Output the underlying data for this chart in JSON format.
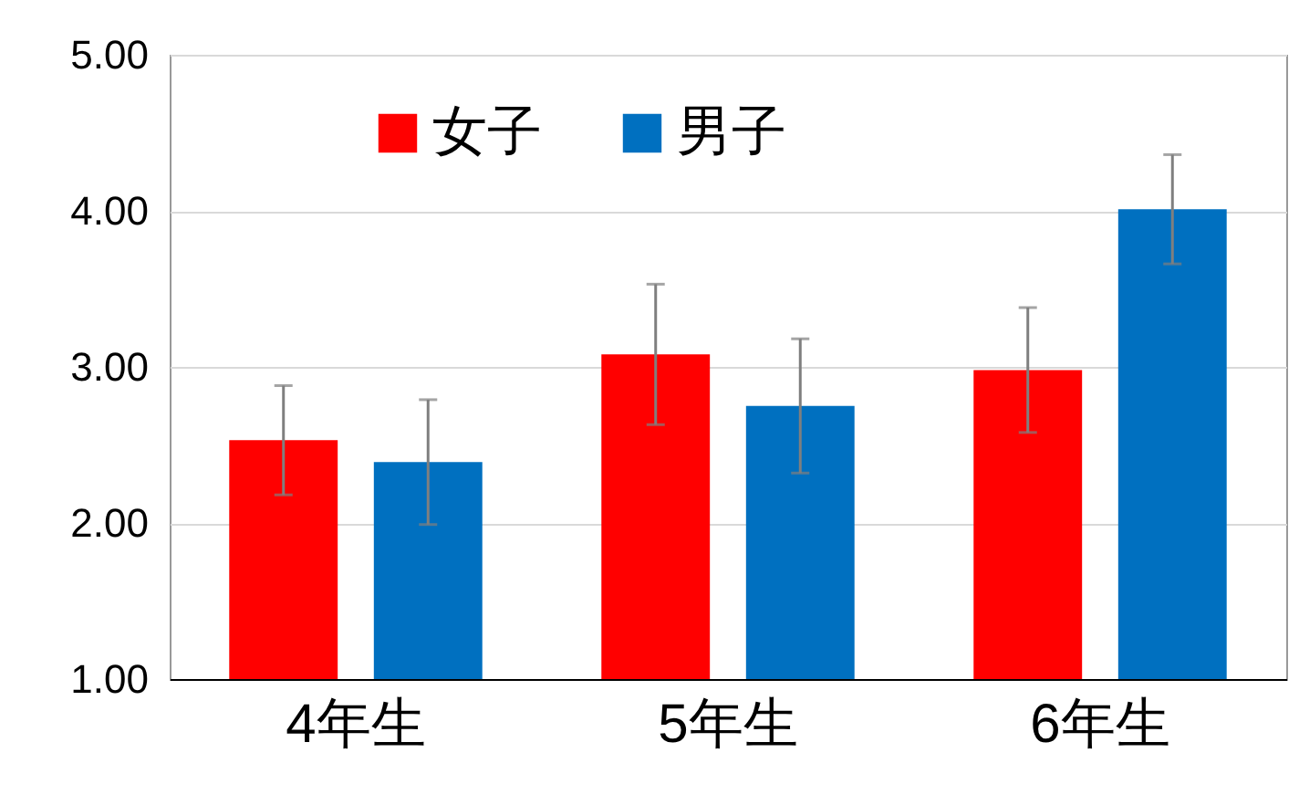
{
  "chart_data": {
    "type": "bar",
    "categories": [
      "4年生",
      "5年生",
      "6年生"
    ],
    "series": [
      {
        "name": "女子",
        "color": "#ff0000",
        "values": [
          2.53,
          3.08,
          2.98
        ],
        "errors": [
          0.35,
          0.45,
          0.4
        ]
      },
      {
        "name": "男子",
        "color": "#0070c0",
        "values": [
          2.39,
          2.75,
          4.01
        ],
        "errors": [
          0.4,
          0.43,
          0.35
        ]
      }
    ],
    "ylim": [
      1,
      5
    ],
    "yticks": [
      {
        "value": 1,
        "label": "1.00"
      },
      {
        "value": 2,
        "label": "2.00"
      },
      {
        "value": 3,
        "label": "3.00"
      },
      {
        "value": 4,
        "label": "4.00"
      },
      {
        "value": 5,
        "label": "5.00"
      }
    ],
    "grid": "y",
    "legend": "top left"
  }
}
